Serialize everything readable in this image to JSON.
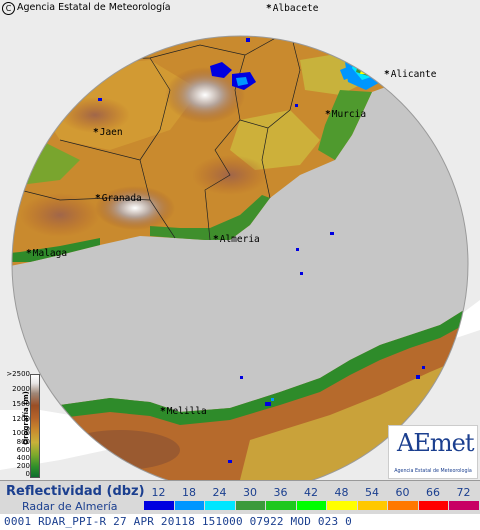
{
  "copyright": "Agencia Estatal de Meteorología",
  "cities": [
    {
      "key": "albacete",
      "name": "Albacete"
    },
    {
      "key": "alicante",
      "name": "Alicante"
    },
    {
      "key": "murcia",
      "name": "Murcia"
    },
    {
      "key": "jaen",
      "name": "Jaen"
    },
    {
      "key": "granada",
      "name": "Granada"
    },
    {
      "key": "almeria",
      "name": "Almeria"
    },
    {
      "key": "malaga",
      "name": "Malaga"
    },
    {
      "key": "melilla",
      "name": "Melilla"
    }
  ],
  "orography_legend": {
    "ticks": [
      ">2500",
      "2000",
      "1500",
      "1200",
      "1000",
      "800",
      "600",
      "400",
      "200",
      "0"
    ],
    "label": "Orografía (m)"
  },
  "logo": {
    "word": "AEmet",
    "subtitle": "Agencia Estatal de Meteorología"
  },
  "reflectivity_legend": {
    "title": "Reflectividad (dbz)",
    "subtitle": "Radar de Almería",
    "levels": [
      {
        "value": "12",
        "color": "#0000e0"
      },
      {
        "value": "18",
        "color": "#0096ff"
      },
      {
        "value": "24",
        "color": "#00e6ff"
      },
      {
        "value": "30",
        "color": "#3c9a3c"
      },
      {
        "value": "36",
        "color": "#1ec81e"
      },
      {
        "value": "42",
        "color": "#00ff00"
      },
      {
        "value": "48",
        "color": "#ffff00"
      },
      {
        "value": "54",
        "color": "#ffc800"
      },
      {
        "value": "60",
        "color": "#ff7800"
      },
      {
        "value": "66",
        "color": "#ff0000"
      },
      {
        "value": "72",
        "color": "#c80064"
      }
    ]
  },
  "status": "0001 RDAR_PPI-R   27 APR 20118 151000 07922 MOD  023 0"
}
